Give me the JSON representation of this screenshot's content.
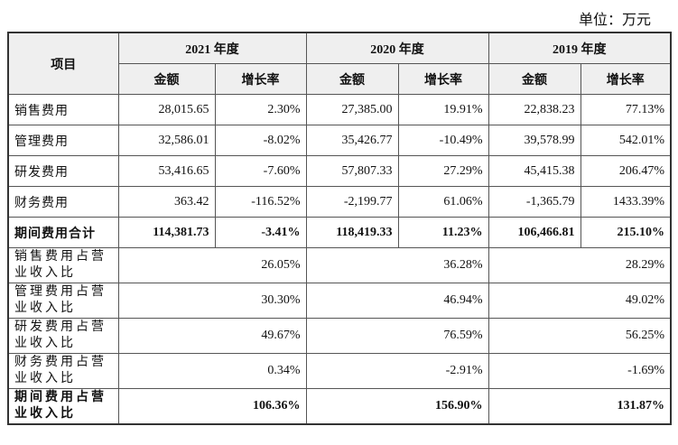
{
  "header": {
    "unit": "单位：万元"
  },
  "table": {
    "item": "项目",
    "years": [
      "2021 年度",
      "2020 年度",
      "2019 年度"
    ],
    "sub": [
      "金额",
      "增长率",
      "金额",
      "增长率",
      "金额",
      "增长率"
    ],
    "rows": [
      {
        "label": "销售费用",
        "cells": [
          "28,015.65",
          "2.30%",
          "27,385.00",
          "19.91%",
          "22,838.23",
          "77.13%"
        ]
      },
      {
        "label": "管理费用",
        "cells": [
          "32,586.01",
          "-8.02%",
          "35,426.77",
          "-10.49%",
          "39,578.99",
          "542.01%"
        ]
      },
      {
        "label": "研发费用",
        "cells": [
          "53,416.65",
          "-7.60%",
          "57,807.33",
          "27.29%",
          "45,415.38",
          "206.47%"
        ]
      },
      {
        "label": "财务费用",
        "cells": [
          "363.42",
          "-116.52%",
          "-2,199.77",
          "61.06%",
          "-1,365.79",
          "1433.39%"
        ]
      },
      {
        "label": "期间费用合计",
        "cells": [
          "114,381.73",
          "-3.41%",
          "118,419.33",
          "11.23%",
          "106,466.81",
          "215.10%"
        ]
      }
    ],
    "ratio_rows": [
      {
        "label": "销售费用占营业收入比",
        "cells": [
          "26.05%",
          "36.28%",
          "28.29%"
        ]
      },
      {
        "label": "管理费用占营业收入比",
        "cells": [
          "30.30%",
          "46.94%",
          "49.02%"
        ]
      },
      {
        "label": "研发费用占营业收入比",
        "cells": [
          "49.67%",
          "76.59%",
          "56.25%"
        ]
      },
      {
        "label": "财务费用占营业收入比",
        "cells": [
          "0.34%",
          "-2.91%",
          "-1.69%"
        ]
      },
      {
        "label": "期间费用占营业收入比",
        "cells": [
          "106.36%",
          "156.90%",
          "131.87%"
        ]
      }
    ]
  }
}
